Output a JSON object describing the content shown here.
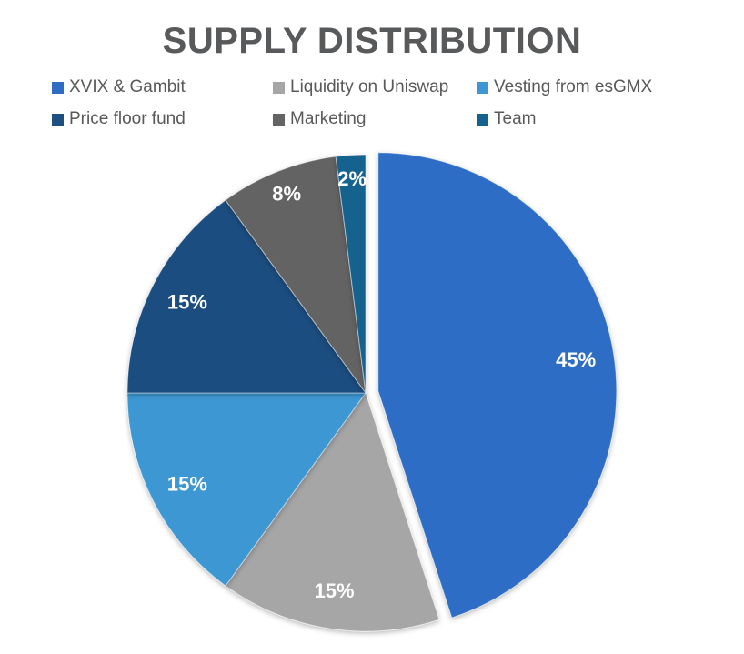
{
  "chart_data": {
    "type": "pie",
    "title": "SUPPLY DISTRIBUTION",
    "unit": "%",
    "legend_position": "top",
    "start_angle_deg": 0,
    "direction": "clockwise",
    "background_color": "#ffffff",
    "title_color": "#58595B",
    "label_color": "#ffffff",
    "slices": [
      {
        "label": "XVIX & Gambit",
        "value": 45,
        "data_label": "45%",
        "color": "#2F6DC5",
        "exploded": true
      },
      {
        "label": "Liquidity on Uniswap",
        "value": 15,
        "data_label": "15%",
        "color": "#A6A6A6",
        "exploded": false
      },
      {
        "label": "Vesting from esGMX",
        "value": 15,
        "data_label": "15%",
        "color": "#3D97D3",
        "exploded": false
      },
      {
        "label": "Price floor fund",
        "value": 15,
        "data_label": "15%",
        "color": "#1F4E80",
        "exploded": false
      },
      {
        "label": "Marketing",
        "value": 8,
        "data_label": "8%",
        "color": "#646464",
        "exploded": false
      },
      {
        "label": "Team",
        "value": 2,
        "data_label": "2%",
        "color": "#15628F",
        "exploded": false
      }
    ]
  }
}
